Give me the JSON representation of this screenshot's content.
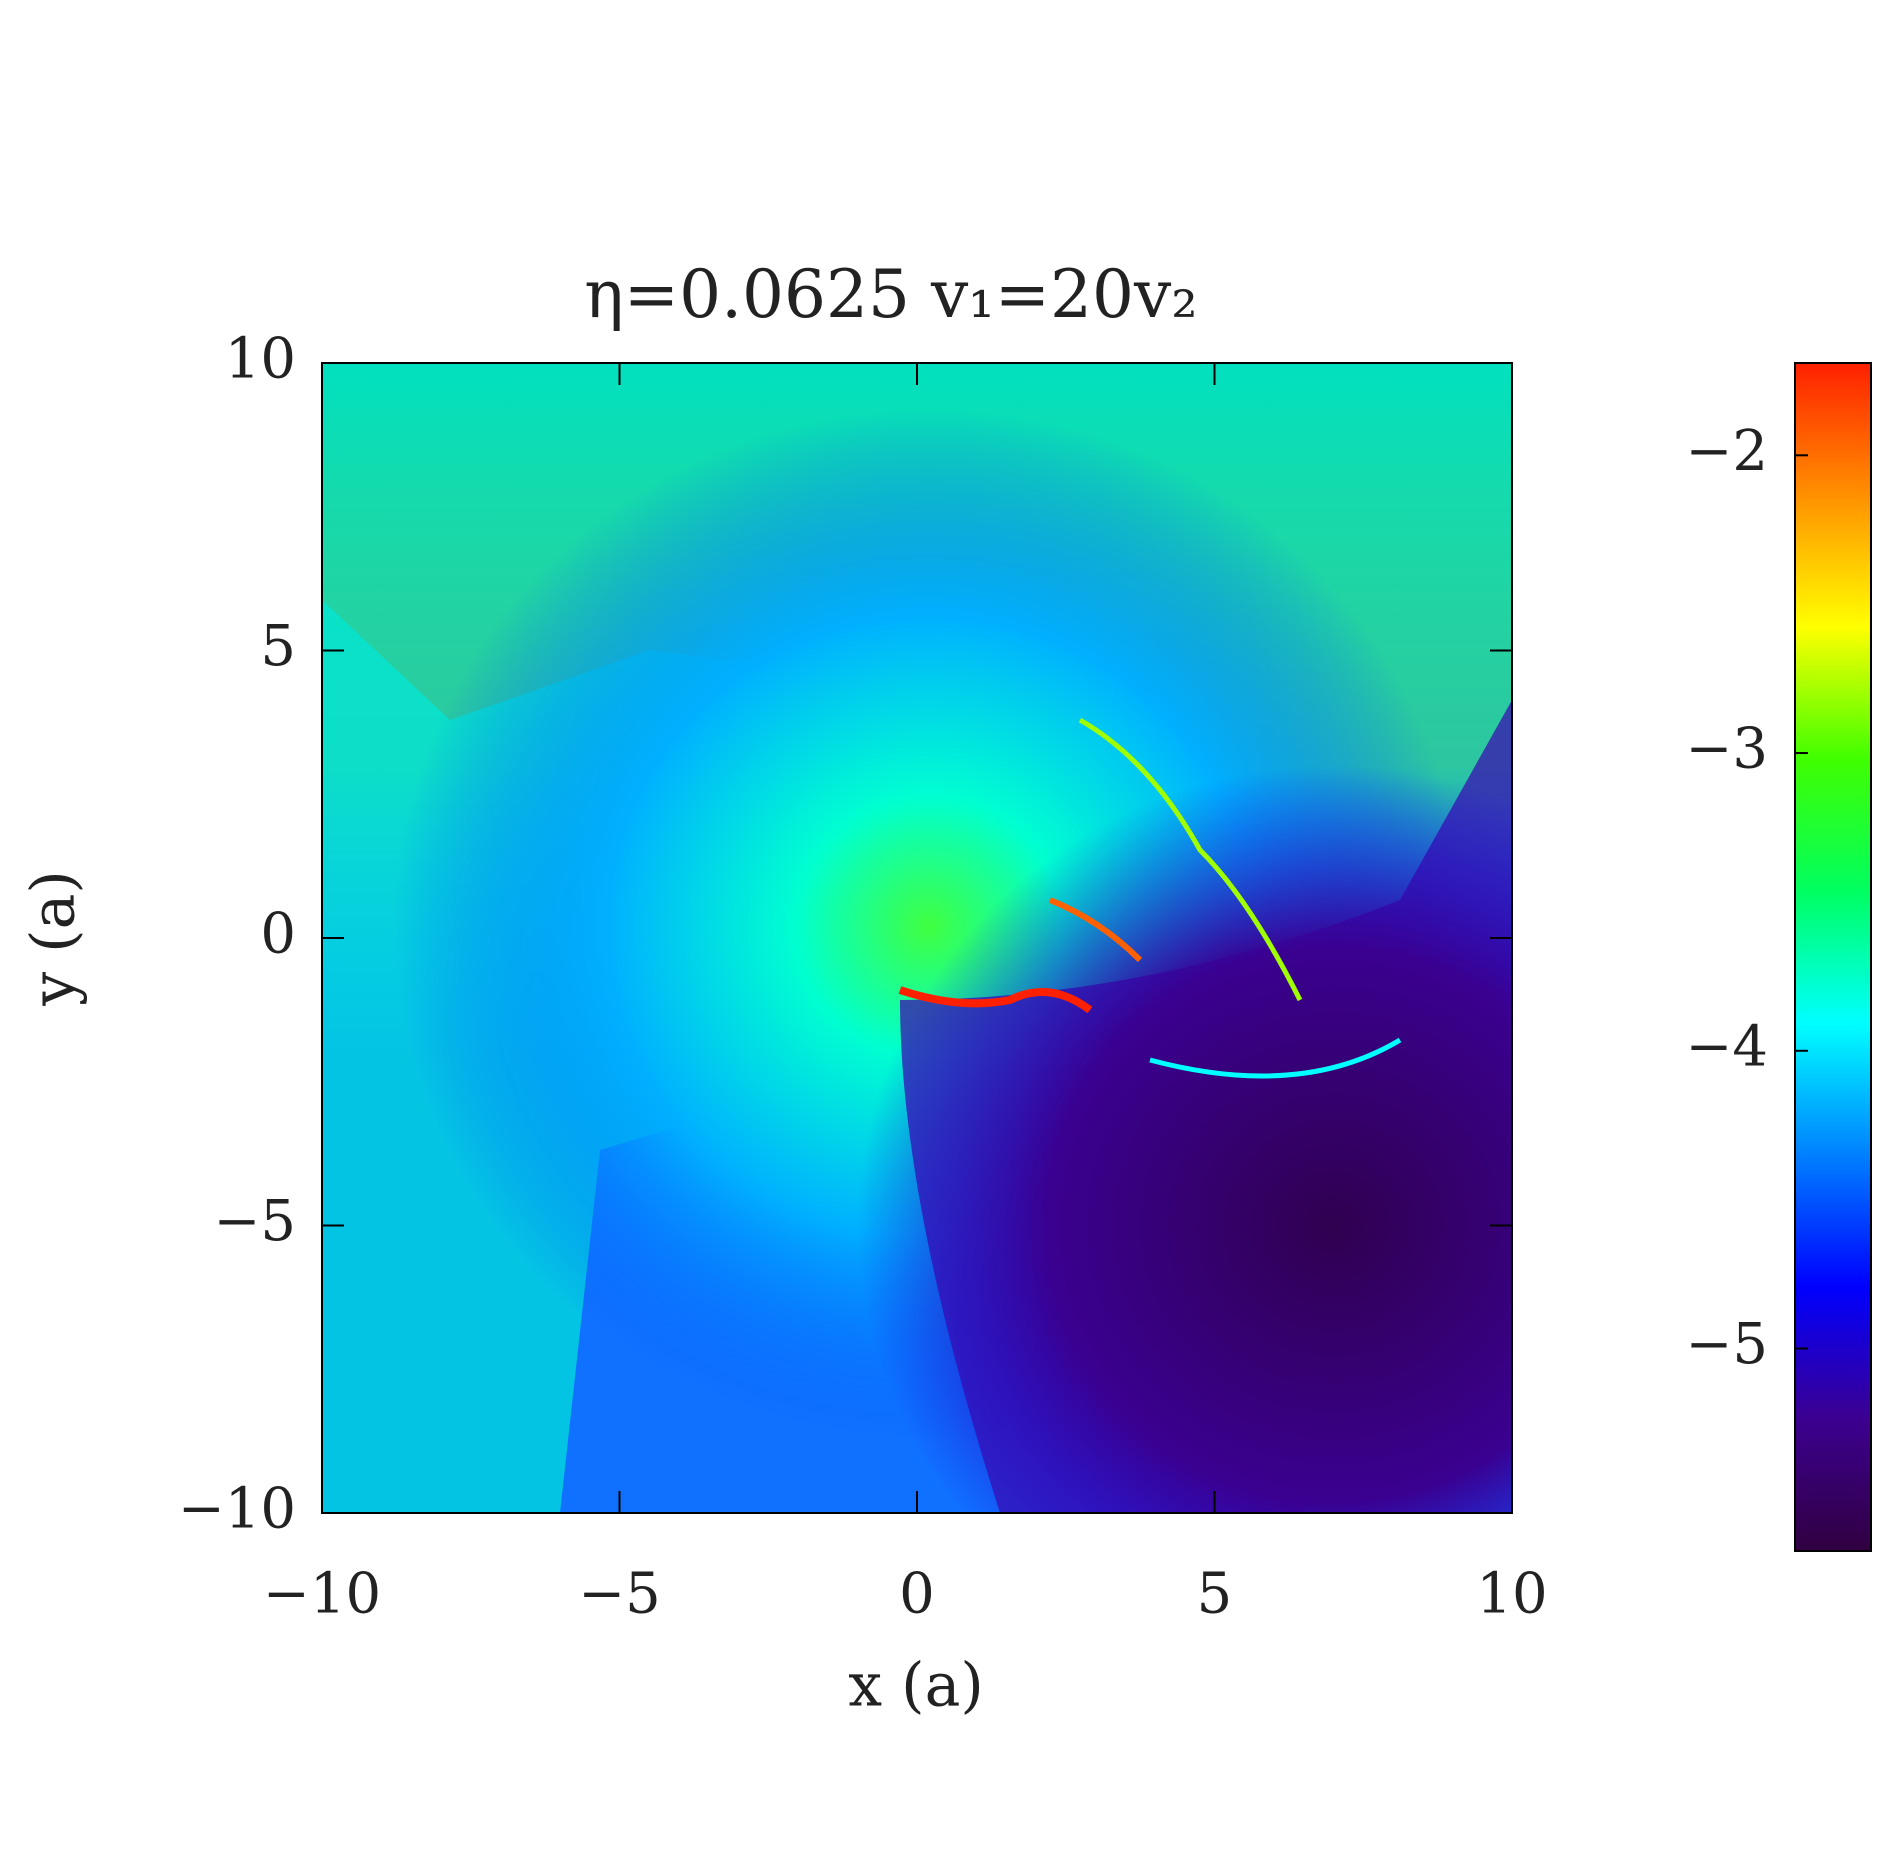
{
  "chart_data": {
    "type": "heatmap",
    "title": "η=0.0625  v₁=20v₂",
    "xlabel": "x (a)",
    "ylabel": "y (a)",
    "xlim": [
      -10,
      10
    ],
    "ylim": [
      -10,
      10
    ],
    "xticks": [
      {
        "value": -10,
        "label": "−10"
      },
      {
        "value": -5,
        "label": "−5"
      },
      0,
      5,
      10
    ],
    "yticks": [
      {
        "value": -10,
        "label": "−10"
      },
      {
        "value": -5,
        "label": "−5"
      },
      0,
      5,
      10
    ],
    "colorbar": {
      "lim": [
        -5.68,
        -1.69
      ],
      "ticks": [
        {
          "value": -5,
          "label": "−5"
        },
        {
          "value": -4,
          "label": "−4"
        },
        {
          "value": -3,
          "label": "−3"
        },
        {
          "value": -2,
          "label": "−2"
        }
      ],
      "colors": [
        "#300040",
        "#3c0090",
        "#0000ff",
        "#0080ff",
        "#00ffff",
        "#00ff60",
        "#40ff00",
        "#ffff00",
        "#ff9000",
        "#ff2000"
      ]
    }
  }
}
